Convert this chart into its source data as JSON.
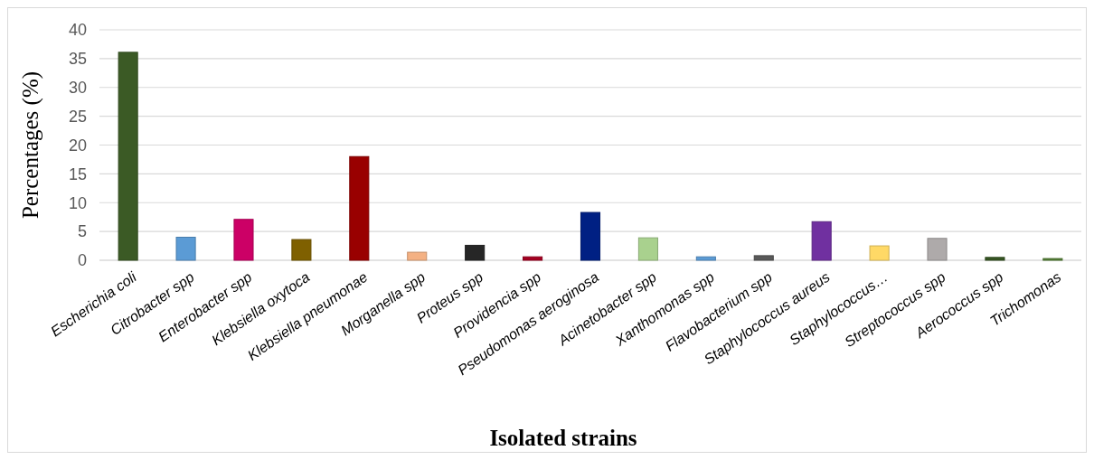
{
  "chart_data": {
    "type": "bar",
    "xlabel": "Isolated strains",
    "ylabel": "Percentages (%)",
    "categories": [
      "Escherichia coli",
      "Citrobacter spp",
      "Enterobacter spp",
      "Klebsiella oxytoca",
      "Klebsiella pneumonae",
      "Morganella spp",
      "Proteus spp",
      "Providencia spp",
      "Pseudomonas aeroginosa",
      "Acinetobacter spp",
      "Xanthomonas spp",
      "Flavobacterium spp",
      "Staphylococcus aureus",
      "Staphylococcus…",
      "Streptococcus spp",
      "Aerococcus spp",
      "Trichomonas"
    ],
    "values": [
      36.1,
      4.0,
      7.1,
      3.6,
      18.0,
      1.4,
      2.6,
      0.6,
      8.3,
      3.9,
      0.6,
      0.8,
      6.7,
      2.5,
      3.8,
      0.5,
      0.3
    ],
    "colors": [
      "#3b5a25",
      "#5b9bd5",
      "#cc0066",
      "#7f6000",
      "#990000",
      "#f4b183",
      "#262626",
      "#a50021",
      "#002083",
      "#a9d18e",
      "#5b9bd5",
      "#595959",
      "#7030a0",
      "#ffd966",
      "#aeaaaa",
      "#375623",
      "#548235"
    ],
    "ylim": [
      0,
      40
    ],
    "yticks": [
      0,
      5,
      10,
      15,
      20,
      25,
      30,
      35,
      40
    ],
    "grid": "y"
  }
}
